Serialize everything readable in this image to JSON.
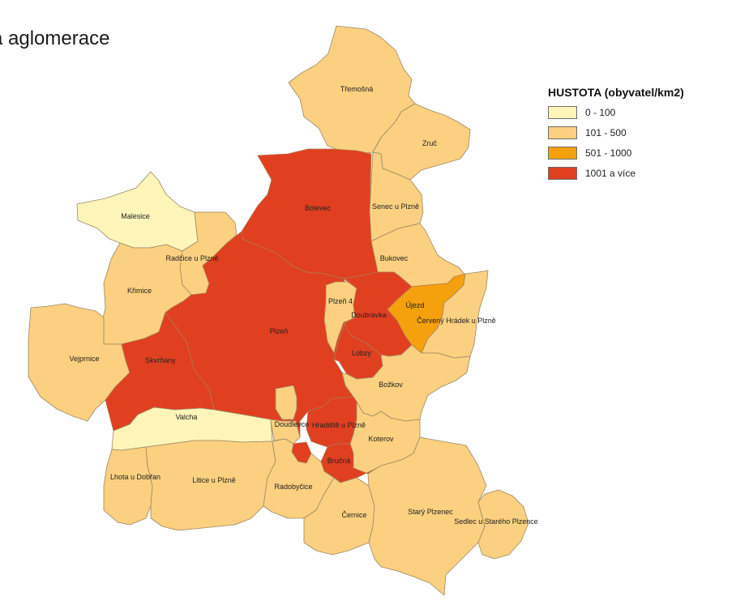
{
  "title": "á aglomerace",
  "legend": {
    "title": "HUSTOTA (obyvatel/km2)",
    "items": [
      {
        "label": "0 - 100",
        "color": "#fff5b8"
      },
      {
        "label": "101 - 500",
        "color": "#fbd080"
      },
      {
        "label": "501 - 1000",
        "color": "#f5a00d"
      },
      {
        "label": "1001 a více",
        "color": "#e04020"
      }
    ]
  },
  "regions": [
    {
      "key": "tremosna",
      "name": "Třemošná",
      "class": 1
    },
    {
      "key": "zruc",
      "name": "Zruč",
      "class": 1
    },
    {
      "key": "senec",
      "name": "Senec u Plzně",
      "class": 1
    },
    {
      "key": "bukovec",
      "name": "Bukovec",
      "class": 1
    },
    {
      "key": "malesice",
      "name": "Malesice",
      "class": 0
    },
    {
      "key": "radcice",
      "name": "Radčice u Plzně",
      "class": 1
    },
    {
      "key": "krimice",
      "name": "Křimice",
      "class": 1
    },
    {
      "key": "vejprnice",
      "name": "Vejprnice",
      "class": 1
    },
    {
      "key": "bolevec",
      "name": "Bolevec",
      "class": 3
    },
    {
      "key": "plzen",
      "name": "Plzeň",
      "class": 3
    },
    {
      "key": "skvrnany",
      "name": "Skvrňany",
      "class": 3
    },
    {
      "key": "plzen4",
      "name": "Plzeň 4",
      "class": 1
    },
    {
      "key": "doubravka",
      "name": "Doubravka",
      "class": 3
    },
    {
      "key": "lobzy",
      "name": "Lobzy",
      "class": 3
    },
    {
      "key": "ujezd",
      "name": "Újezd",
      "class": 2
    },
    {
      "key": "cerveny",
      "name": "Červený Hrádek u Plzně",
      "class": 1
    },
    {
      "key": "bozkov",
      "name": "Božkov",
      "class": 1
    },
    {
      "key": "valcha",
      "name": "Valcha",
      "class": 0
    },
    {
      "key": "doudlevce",
      "name": "Doudlevce",
      "class": 1
    },
    {
      "key": "hradiste",
      "name": "Hradiště u Plzně",
      "class": 3
    },
    {
      "key": "koterov",
      "name": "Koterov",
      "class": 1
    },
    {
      "key": "brucna",
      "name": "Bručná",
      "class": 3
    },
    {
      "key": "lhota",
      "name": "Lhota u Dobřan",
      "class": 1
    },
    {
      "key": "litice",
      "name": "Litice u Plzně",
      "class": 1
    },
    {
      "key": "radobycice",
      "name": "Radobyčice",
      "class": 1
    },
    {
      "key": "cernice",
      "name": "Černice",
      "class": 1
    },
    {
      "key": "stary",
      "name": "Starý Plzenec",
      "class": 1
    },
    {
      "key": "sedlec",
      "name": "Sedlec u Starého Plzence",
      "class": 1
    }
  ]
}
